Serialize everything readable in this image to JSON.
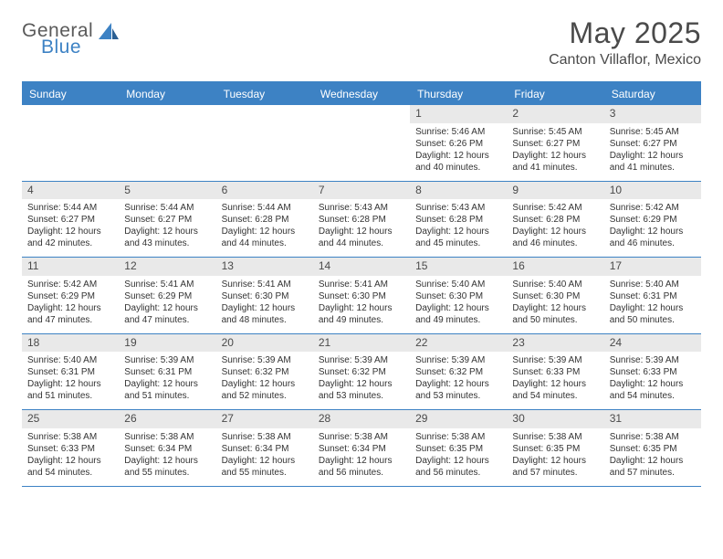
{
  "brand": {
    "part1": "General",
    "part2": "Blue"
  },
  "title": "May 2025",
  "location": "Canton Villaflor, Mexico",
  "colors": {
    "accent": "#3d82c4",
    "daynum_bg": "#e9e9e9",
    "text": "#333333",
    "header_text": "#4a4a4a",
    "white": "#ffffff"
  },
  "dow": [
    "Sunday",
    "Monday",
    "Tuesday",
    "Wednesday",
    "Thursday",
    "Friday",
    "Saturday"
  ],
  "weeks": [
    [
      {
        "n": "",
        "sr": "",
        "ss": "",
        "dl": ""
      },
      {
        "n": "",
        "sr": "",
        "ss": "",
        "dl": ""
      },
      {
        "n": "",
        "sr": "",
        "ss": "",
        "dl": ""
      },
      {
        "n": "",
        "sr": "",
        "ss": "",
        "dl": ""
      },
      {
        "n": "1",
        "sr": "Sunrise: 5:46 AM",
        "ss": "Sunset: 6:26 PM",
        "dl": "Daylight: 12 hours and 40 minutes."
      },
      {
        "n": "2",
        "sr": "Sunrise: 5:45 AM",
        "ss": "Sunset: 6:27 PM",
        "dl": "Daylight: 12 hours and 41 minutes."
      },
      {
        "n": "3",
        "sr": "Sunrise: 5:45 AM",
        "ss": "Sunset: 6:27 PM",
        "dl": "Daylight: 12 hours and 41 minutes."
      }
    ],
    [
      {
        "n": "4",
        "sr": "Sunrise: 5:44 AM",
        "ss": "Sunset: 6:27 PM",
        "dl": "Daylight: 12 hours and 42 minutes."
      },
      {
        "n": "5",
        "sr": "Sunrise: 5:44 AM",
        "ss": "Sunset: 6:27 PM",
        "dl": "Daylight: 12 hours and 43 minutes."
      },
      {
        "n": "6",
        "sr": "Sunrise: 5:44 AM",
        "ss": "Sunset: 6:28 PM",
        "dl": "Daylight: 12 hours and 44 minutes."
      },
      {
        "n": "7",
        "sr": "Sunrise: 5:43 AM",
        "ss": "Sunset: 6:28 PM",
        "dl": "Daylight: 12 hours and 44 minutes."
      },
      {
        "n": "8",
        "sr": "Sunrise: 5:43 AM",
        "ss": "Sunset: 6:28 PM",
        "dl": "Daylight: 12 hours and 45 minutes."
      },
      {
        "n": "9",
        "sr": "Sunrise: 5:42 AM",
        "ss": "Sunset: 6:28 PM",
        "dl": "Daylight: 12 hours and 46 minutes."
      },
      {
        "n": "10",
        "sr": "Sunrise: 5:42 AM",
        "ss": "Sunset: 6:29 PM",
        "dl": "Daylight: 12 hours and 46 minutes."
      }
    ],
    [
      {
        "n": "11",
        "sr": "Sunrise: 5:42 AM",
        "ss": "Sunset: 6:29 PM",
        "dl": "Daylight: 12 hours and 47 minutes."
      },
      {
        "n": "12",
        "sr": "Sunrise: 5:41 AM",
        "ss": "Sunset: 6:29 PM",
        "dl": "Daylight: 12 hours and 47 minutes."
      },
      {
        "n": "13",
        "sr": "Sunrise: 5:41 AM",
        "ss": "Sunset: 6:30 PM",
        "dl": "Daylight: 12 hours and 48 minutes."
      },
      {
        "n": "14",
        "sr": "Sunrise: 5:41 AM",
        "ss": "Sunset: 6:30 PM",
        "dl": "Daylight: 12 hours and 49 minutes."
      },
      {
        "n": "15",
        "sr": "Sunrise: 5:40 AM",
        "ss": "Sunset: 6:30 PM",
        "dl": "Daylight: 12 hours and 49 minutes."
      },
      {
        "n": "16",
        "sr": "Sunrise: 5:40 AM",
        "ss": "Sunset: 6:30 PM",
        "dl": "Daylight: 12 hours and 50 minutes."
      },
      {
        "n": "17",
        "sr": "Sunrise: 5:40 AM",
        "ss": "Sunset: 6:31 PM",
        "dl": "Daylight: 12 hours and 50 minutes."
      }
    ],
    [
      {
        "n": "18",
        "sr": "Sunrise: 5:40 AM",
        "ss": "Sunset: 6:31 PM",
        "dl": "Daylight: 12 hours and 51 minutes."
      },
      {
        "n": "19",
        "sr": "Sunrise: 5:39 AM",
        "ss": "Sunset: 6:31 PM",
        "dl": "Daylight: 12 hours and 51 minutes."
      },
      {
        "n": "20",
        "sr": "Sunrise: 5:39 AM",
        "ss": "Sunset: 6:32 PM",
        "dl": "Daylight: 12 hours and 52 minutes."
      },
      {
        "n": "21",
        "sr": "Sunrise: 5:39 AM",
        "ss": "Sunset: 6:32 PM",
        "dl": "Daylight: 12 hours and 53 minutes."
      },
      {
        "n": "22",
        "sr": "Sunrise: 5:39 AM",
        "ss": "Sunset: 6:32 PM",
        "dl": "Daylight: 12 hours and 53 minutes."
      },
      {
        "n": "23",
        "sr": "Sunrise: 5:39 AM",
        "ss": "Sunset: 6:33 PM",
        "dl": "Daylight: 12 hours and 54 minutes."
      },
      {
        "n": "24",
        "sr": "Sunrise: 5:39 AM",
        "ss": "Sunset: 6:33 PM",
        "dl": "Daylight: 12 hours and 54 minutes."
      }
    ],
    [
      {
        "n": "25",
        "sr": "Sunrise: 5:38 AM",
        "ss": "Sunset: 6:33 PM",
        "dl": "Daylight: 12 hours and 54 minutes."
      },
      {
        "n": "26",
        "sr": "Sunrise: 5:38 AM",
        "ss": "Sunset: 6:34 PM",
        "dl": "Daylight: 12 hours and 55 minutes."
      },
      {
        "n": "27",
        "sr": "Sunrise: 5:38 AM",
        "ss": "Sunset: 6:34 PM",
        "dl": "Daylight: 12 hours and 55 minutes."
      },
      {
        "n": "28",
        "sr": "Sunrise: 5:38 AM",
        "ss": "Sunset: 6:34 PM",
        "dl": "Daylight: 12 hours and 56 minutes."
      },
      {
        "n": "29",
        "sr": "Sunrise: 5:38 AM",
        "ss": "Sunset: 6:35 PM",
        "dl": "Daylight: 12 hours and 56 minutes."
      },
      {
        "n": "30",
        "sr": "Sunrise: 5:38 AM",
        "ss": "Sunset: 6:35 PM",
        "dl": "Daylight: 12 hours and 57 minutes."
      },
      {
        "n": "31",
        "sr": "Sunrise: 5:38 AM",
        "ss": "Sunset: 6:35 PM",
        "dl": "Daylight: 12 hours and 57 minutes."
      }
    ]
  ]
}
